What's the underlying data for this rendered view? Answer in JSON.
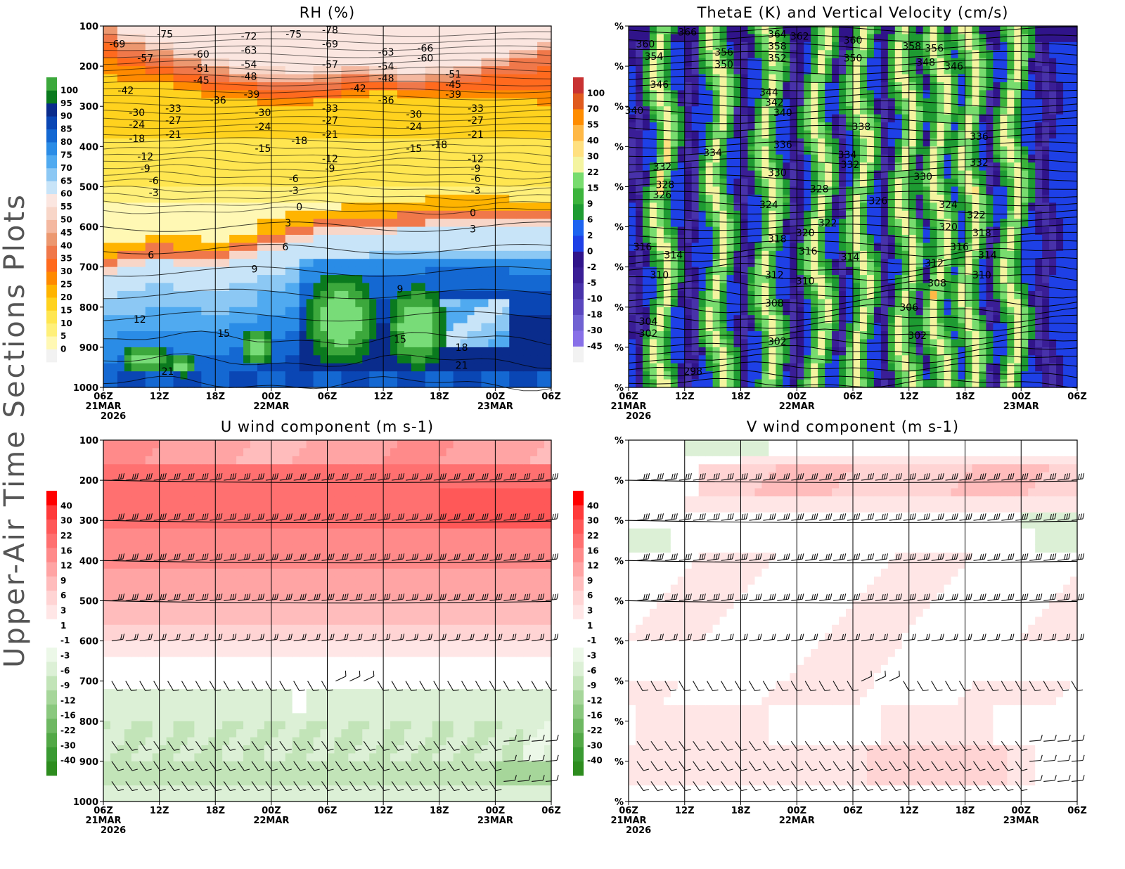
{
  "page_title": "Upper-Air Time Sections Plots",
  "colors": {
    "rh": [
      "#f2f2f2",
      "#fff8b4",
      "#fff07a",
      "#ffe650",
      "#ffd21e",
      "#ffb400",
      "#ff8a00",
      "#ff6a1e",
      "#f0784a",
      "#ec9870",
      "#f4b8a0",
      "#f8d6c8",
      "#fbe6e0",
      "#c8e4f8",
      "#8cc8f4",
      "#50aaf0",
      "#2a8ce6",
      "#1468d2",
      "#0a46b4",
      "#0a2c8c",
      "#0a7a1e",
      "#3ca83c",
      "#78dc78"
    ],
    "thetae": [
      "#f2f2f2",
      "#8870e8",
      "#7062d2",
      "#5a46be",
      "#4832aa",
      "#3a1e96",
      "#30148a",
      "#1e40e6",
      "#1e64f0",
      "#1e9b32",
      "#3cb43c",
      "#78dc6e",
      "#f4f4a0",
      "#ffe080",
      "#ffb846",
      "#ff8c00",
      "#e05a1e",
      "#c83232",
      "#a01414"
    ],
    "wind_neg": [
      "#2d8c1e",
      "#3a9a32",
      "#52a846",
      "#6eb862",
      "#8ac87e",
      "#a6d69a",
      "#c2e4b8",
      "#dcf0d6",
      "#ecf8e8"
    ],
    "wind_pos": [
      "#ffe6e6",
      "#ffd4d4",
      "#ffbcbc",
      "#ffa4a4",
      "#ff8a8a",
      "#ff7070",
      "#ff5858",
      "#ff3a3a",
      "#ff0000"
    ]
  },
  "chart_data": [
    {
      "type": "heatmap",
      "title": "RH (%)",
      "x_ticks": [
        "06Z",
        "12Z",
        "18Z",
        "00Z",
        "06Z",
        "12Z",
        "18Z",
        "00Z",
        "06Z"
      ],
      "x_dates": [
        "21MAR",
        "",
        "",
        "22MAR",
        "",
        "",
        "",
        "23MAR",
        ""
      ],
      "x_year": "2026",
      "y_ticks": [
        "100",
        "200",
        "300",
        "400",
        "500",
        "600",
        "700",
        "800",
        "900",
        "1000"
      ],
      "ylim": [
        1000,
        100
      ],
      "colorbar": [
        "0",
        "5",
        "10",
        "15",
        "20",
        "25",
        "30",
        "35",
        "40",
        "45",
        "50",
        "55",
        "60",
        "65",
        "70",
        "75",
        "80",
        "85",
        "90",
        "95",
        "100"
      ],
      "contour_labels": [
        {
          "v": "-69",
          "t": 0.5,
          "p": 145
        },
        {
          "v": "-75",
          "t": 2.2,
          "p": 120
        },
        {
          "v": "-57",
          "t": 1.5,
          "p": 180
        },
        {
          "v": "-60",
          "t": 3.5,
          "p": 170
        },
        {
          "v": "-51",
          "t": 3.5,
          "p": 205
        },
        {
          "v": "-45",
          "t": 3.5,
          "p": 235
        },
        {
          "v": "-72",
          "t": 5.2,
          "p": 125
        },
        {
          "v": "-63",
          "t": 5.2,
          "p": 160
        },
        {
          "v": "-54",
          "t": 5.2,
          "p": 195
        },
        {
          "v": "-48",
          "t": 5.2,
          "p": 225
        },
        {
          "v": "-75",
          "t": 6.8,
          "p": 120
        },
        {
          "v": "-78",
          "t": 8.1,
          "p": 110
        },
        {
          "v": "-69",
          "t": 8.1,
          "p": 145
        },
        {
          "v": "-57",
          "t": 8.1,
          "p": 195
        },
        {
          "v": "-42",
          "t": 0.8,
          "p": 260
        },
        {
          "v": "-36",
          "t": 4.1,
          "p": 285
        },
        {
          "v": "-39",
          "t": 5.3,
          "p": 270
        },
        {
          "v": "-33",
          "t": 2.5,
          "p": 305
        },
        {
          "v": "-30",
          "t": 1.2,
          "p": 315
        },
        {
          "v": "-27",
          "t": 2.5,
          "p": 335
        },
        {
          "v": "-24",
          "t": 1.2,
          "p": 345
        },
        {
          "v": "-21",
          "t": 2.5,
          "p": 370
        },
        {
          "v": "-18",
          "t": 1.2,
          "p": 380
        },
        {
          "v": "-30",
          "t": 5.7,
          "p": 315
        },
        {
          "v": "-24",
          "t": 5.7,
          "p": 350
        },
        {
          "v": "-15",
          "t": 5.7,
          "p": 405
        },
        {
          "v": "-18",
          "t": 7.0,
          "p": 385
        },
        {
          "v": "-33",
          "t": 8.1,
          "p": 305
        },
        {
          "v": "-27",
          "t": 8.1,
          "p": 335
        },
        {
          "v": "-21",
          "t": 8.1,
          "p": 370
        },
        {
          "v": "-12",
          "t": 8.1,
          "p": 430
        },
        {
          "v": "-9",
          "t": 8.1,
          "p": 455
        },
        {
          "v": "-63",
          "t": 10.1,
          "p": 165
        },
        {
          "v": "-54",
          "t": 10.1,
          "p": 200
        },
        {
          "v": "-48",
          "t": 10.1,
          "p": 230
        },
        {
          "v": "-42",
          "t": 9.1,
          "p": 255
        },
        {
          "v": "-36",
          "t": 10.1,
          "p": 285
        },
        {
          "v": "-66",
          "t": 11.5,
          "p": 155
        },
        {
          "v": "-60",
          "t": 11.5,
          "p": 180
        },
        {
          "v": "-51",
          "t": 12.5,
          "p": 220
        },
        {
          "v": "-45",
          "t": 12.5,
          "p": 245
        },
        {
          "v": "-39",
          "t": 12.5,
          "p": 270
        },
        {
          "v": "-30",
          "t": 11.1,
          "p": 320
        },
        {
          "v": "-24",
          "t": 11.1,
          "p": 350
        },
        {
          "v": "-15",
          "t": 11.1,
          "p": 405
        },
        {
          "v": "-18",
          "t": 12.0,
          "p": 395
        },
        {
          "v": "-33",
          "t": 13.3,
          "p": 305
        },
        {
          "v": "-27",
          "t": 13.3,
          "p": 335
        },
        {
          "v": "-21",
          "t": 13.3,
          "p": 370
        },
        {
          "v": "-12",
          "t": 13.3,
          "p": 430
        },
        {
          "v": "-9",
          "t": 13.3,
          "p": 455
        },
        {
          "v": "-6",
          "t": 13.3,
          "p": 480
        },
        {
          "v": "-3",
          "t": 13.3,
          "p": 510
        },
        {
          "v": "-12",
          "t": 1.5,
          "p": 425
        },
        {
          "v": "-9",
          "t": 1.5,
          "p": 455
        },
        {
          "v": "-6",
          "t": 1.8,
          "p": 485
        },
        {
          "v": "-3",
          "t": 1.8,
          "p": 515
        },
        {
          "v": "-6",
          "t": 6.8,
          "p": 480
        },
        {
          "v": "-3",
          "t": 6.8,
          "p": 510
        },
        {
          "v": "0",
          "t": 7.0,
          "p": 550
        },
        {
          "v": "3",
          "t": 6.6,
          "p": 590
        },
        {
          "v": "6",
          "t": 6.5,
          "p": 650
        },
        {
          "v": "9",
          "t": 5.4,
          "p": 705
        },
        {
          "v": "6",
          "t": 1.7,
          "p": 670
        },
        {
          "v": "0",
          "t": 13.2,
          "p": 565
        },
        {
          "v": "3",
          "t": 13.2,
          "p": 605
        },
        {
          "v": "9",
          "t": 10.6,
          "p": 755
        },
        {
          "v": "12",
          "t": 1.3,
          "p": 830
        },
        {
          "v": "15",
          "t": 4.3,
          "p": 865
        },
        {
          "v": "15",
          "t": 10.6,
          "p": 880
        },
        {
          "v": "18",
          "t": 12.8,
          "p": 900
        },
        {
          "v": "21",
          "t": 2.3,
          "p": 960
        },
        {
          "v": "21",
          "t": 12.8,
          "p": 945
        }
      ]
    },
    {
      "type": "heatmap",
      "title": "ThetaE (K) and Vertical Velocity (cm/s)",
      "x_ticks": [
        "06Z",
        "12Z",
        "18Z",
        "00Z",
        "06Z",
        "12Z",
        "18Z",
        "00Z",
        "06Z"
      ],
      "x_dates": [
        "21MAR",
        "",
        "",
        "22MAR",
        "",
        "",
        "",
        "23MAR",
        ""
      ],
      "x_year": "2026",
      "y_ticks": [
        "%",
        "%",
        "%",
        "%",
        "%",
        "%",
        "%",
        "%",
        "%",
        "%"
      ],
      "ylim": [
        1000,
        100
      ],
      "colorbar": [
        "-45",
        "-30",
        "-18",
        "-10",
        "-5",
        "-2",
        "0",
        "2",
        "6",
        "9",
        "15",
        "22",
        "30",
        "40",
        "55",
        "70",
        "100"
      ],
      "contour_labels": [
        {
          "v": "366",
          "t": 2.1,
          "p": 115
        },
        {
          "v": "360",
          "t": 0.6,
          "p": 145
        },
        {
          "v": "354",
          "t": 0.9,
          "p": 175
        },
        {
          "v": "364",
          "t": 5.3,
          "p": 120
        },
        {
          "v": "362",
          "t": 6.1,
          "p": 125
        },
        {
          "v": "360",
          "t": 8.0,
          "p": 135
        },
        {
          "v": "358",
          "t": 5.3,
          "p": 150
        },
        {
          "v": "356",
          "t": 3.4,
          "p": 165
        },
        {
          "v": "352",
          "t": 5.3,
          "p": 180
        },
        {
          "v": "350",
          "t": 3.4,
          "p": 195
        },
        {
          "v": "350",
          "t": 8.0,
          "p": 180
        },
        {
          "v": "358",
          "t": 10.1,
          "p": 150
        },
        {
          "v": "356",
          "t": 10.9,
          "p": 155
        },
        {
          "v": "348",
          "t": 10.6,
          "p": 190
        },
        {
          "v": "346",
          "t": 11.6,
          "p": 200
        },
        {
          "v": "346",
          "t": 1.1,
          "p": 245
        },
        {
          "v": "340",
          "t": 0.2,
          "p": 310
        },
        {
          "v": "344",
          "t": 5.0,
          "p": 265
        },
        {
          "v": "342",
          "t": 5.2,
          "p": 290
        },
        {
          "v": "340",
          "t": 5.5,
          "p": 315
        },
        {
          "v": "338",
          "t": 8.3,
          "p": 350
        },
        {
          "v": "336",
          "t": 5.5,
          "p": 395
        },
        {
          "v": "336",
          "t": 12.5,
          "p": 375
        },
        {
          "v": "334",
          "t": 3.0,
          "p": 415
        },
        {
          "v": "334",
          "t": 7.8,
          "p": 420
        },
        {
          "v": "332",
          "t": 1.2,
          "p": 450
        },
        {
          "v": "332",
          "t": 7.9,
          "p": 445
        },
        {
          "v": "332",
          "t": 12.5,
          "p": 440
        },
        {
          "v": "330",
          "t": 5.3,
          "p": 465
        },
        {
          "v": "330",
          "t": 10.5,
          "p": 475
        },
        {
          "v": "328",
          "t": 1.3,
          "p": 495
        },
        {
          "v": "326",
          "t": 1.2,
          "p": 520
        },
        {
          "v": "328",
          "t": 6.8,
          "p": 505
        },
        {
          "v": "326",
          "t": 8.9,
          "p": 535
        },
        {
          "v": "324",
          "t": 5.0,
          "p": 545
        },
        {
          "v": "324",
          "t": 11.4,
          "p": 545
        },
        {
          "v": "322",
          "t": 7.1,
          "p": 590
        },
        {
          "v": "322",
          "t": 12.4,
          "p": 570
        },
        {
          "v": "320",
          "t": 6.3,
          "p": 615
        },
        {
          "v": "320",
          "t": 11.4,
          "p": 600
        },
        {
          "v": "318",
          "t": 5.3,
          "p": 630
        },
        {
          "v": "318",
          "t": 12.6,
          "p": 615
        },
        {
          "v": "316",
          "t": 0.5,
          "p": 650
        },
        {
          "v": "316",
          "t": 6.4,
          "p": 660
        },
        {
          "v": "316",
          "t": 11.8,
          "p": 650
        },
        {
          "v": "314",
          "t": 1.6,
          "p": 670
        },
        {
          "v": "314",
          "t": 7.9,
          "p": 675
        },
        {
          "v": "314",
          "t": 12.8,
          "p": 670
        },
        {
          "v": "312",
          "t": 5.2,
          "p": 720
        },
        {
          "v": "312",
          "t": 10.9,
          "p": 690
        },
        {
          "v": "310",
          "t": 1.1,
          "p": 720
        },
        {
          "v": "310",
          "t": 6.3,
          "p": 735
        },
        {
          "v": "310",
          "t": 12.6,
          "p": 720
        },
        {
          "v": "308",
          "t": 5.2,
          "p": 790
        },
        {
          "v": "308",
          "t": 11.0,
          "p": 740
        },
        {
          "v": "306",
          "t": 10.0,
          "p": 800
        },
        {
          "v": "304",
          "t": 0.7,
          "p": 835
        },
        {
          "v": "302",
          "t": 0.7,
          "p": 865
        },
        {
          "v": "302",
          "t": 5.3,
          "p": 885
        },
        {
          "v": "302",
          "t": 10.3,
          "p": 870
        },
        {
          "v": "298",
          "t": 2.3,
          "p": 960
        }
      ]
    },
    {
      "type": "heatmap",
      "title": "U wind component (m s-1)",
      "x_ticks": [
        "06Z",
        "12Z",
        "18Z",
        "00Z",
        "06Z",
        "12Z",
        "18Z",
        "00Z",
        "06Z"
      ],
      "x_dates": [
        "21MAR",
        "",
        "",
        "22MAR",
        "",
        "",
        "",
        "23MAR",
        ""
      ],
      "x_year": "2026",
      "y_ticks": [
        "100",
        "200",
        "300",
        "400",
        "500",
        "600",
        "700",
        "800",
        "900",
        "1000"
      ],
      "ylim": [
        1000,
        100
      ],
      "colorbar": [
        "-40",
        "-30",
        "-22",
        "-16",
        "-12",
        "-9",
        "-6",
        "-3",
        "-1",
        "1",
        "3",
        "6",
        "9",
        "12",
        "16",
        "22",
        "30",
        "40"
      ]
    },
    {
      "type": "heatmap",
      "title": "V wind component (m s-1)",
      "x_ticks": [
        "06Z",
        "12Z",
        "18Z",
        "00Z",
        "06Z",
        "12Z",
        "18Z",
        "00Z",
        "06Z"
      ],
      "x_dates": [
        "21MAR",
        "",
        "",
        "22MAR",
        "",
        "",
        "",
        "23MAR",
        ""
      ],
      "x_year": "2026",
      "y_ticks": [
        "%",
        "%",
        "%",
        "%",
        "%",
        "%",
        "%",
        "%",
        "%",
        "%"
      ],
      "ylim": [
        1000,
        100
      ],
      "colorbar": [
        "-40",
        "-30",
        "-22",
        "-16",
        "-12",
        "-9",
        "-6",
        "-3",
        "-1",
        "1",
        "3",
        "6",
        "9",
        "12",
        "16",
        "22",
        "30",
        "40"
      ]
    }
  ]
}
